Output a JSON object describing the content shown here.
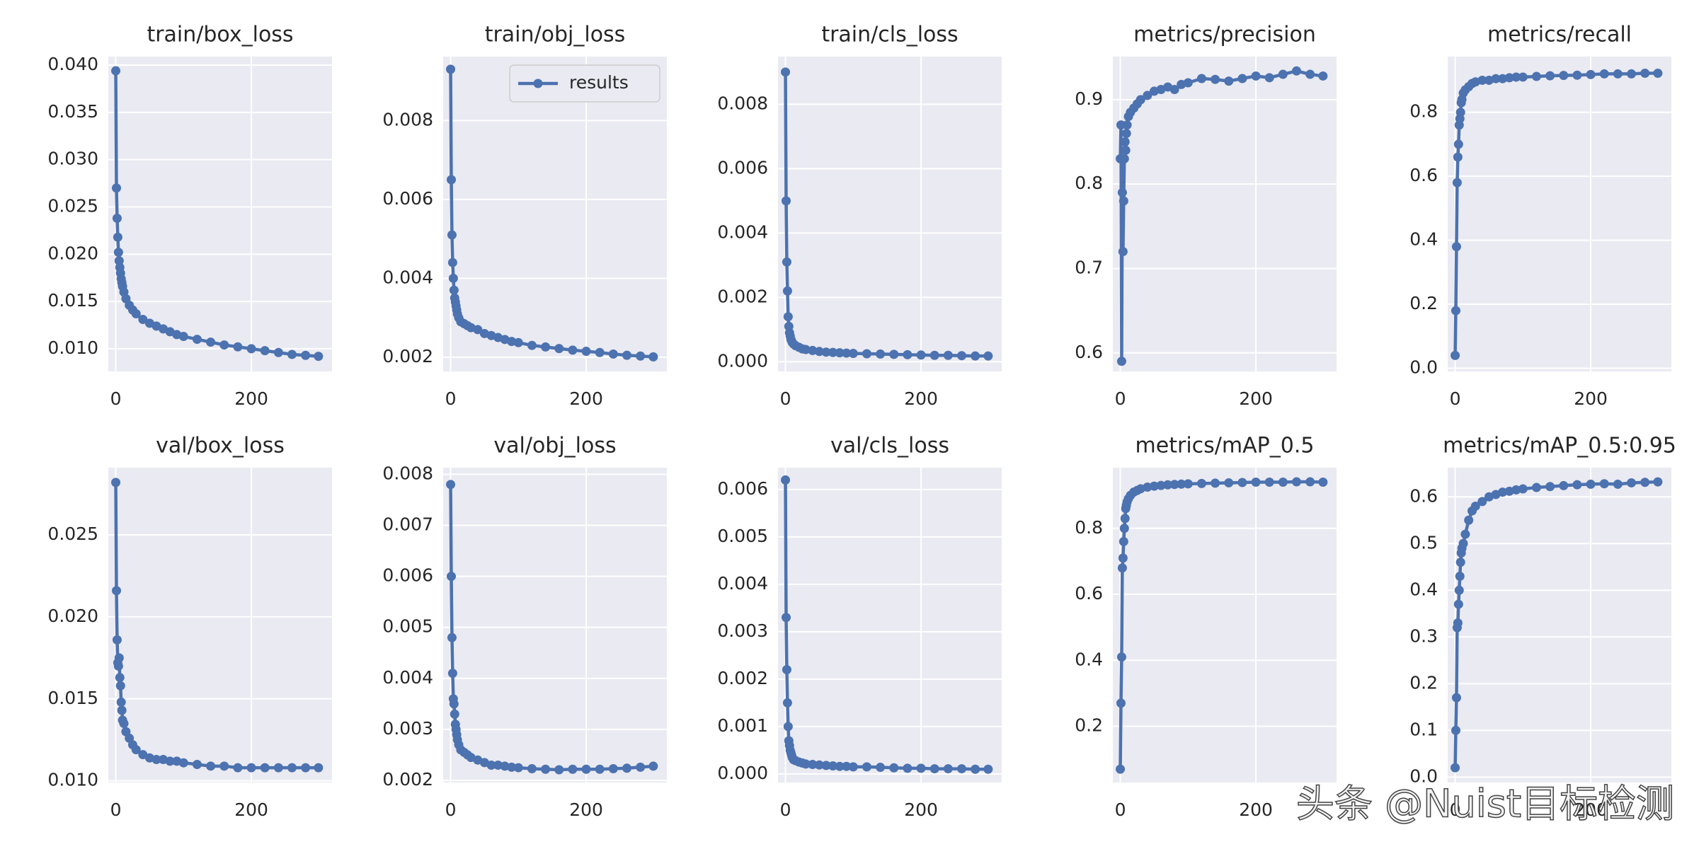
{
  "chart_data": [
    {
      "type": "line",
      "title": "train/box_loss",
      "x": [
        0,
        1,
        2,
        3,
        4,
        5,
        6,
        7,
        8,
        9,
        10,
        12,
        15,
        20,
        25,
        30,
        40,
        50,
        60,
        70,
        80,
        90,
        100,
        120,
        140,
        160,
        180,
        200,
        220,
        240,
        260,
        280,
        299
      ],
      "series": [
        {
          "color": "#4c72b0",
          "values": [
            0.0394,
            0.027,
            0.0238,
            0.0218,
            0.0202,
            0.0193,
            0.0186,
            0.018,
            0.0174,
            0.017,
            0.0166,
            0.016,
            0.0153,
            0.0146,
            0.0141,
            0.0137,
            0.0131,
            0.0127,
            0.0124,
            0.0121,
            0.0118,
            0.0115,
            0.0113,
            0.011,
            0.0107,
            0.0104,
            0.0102,
            0.01,
            0.0098,
            0.0096,
            0.0094,
            0.0093,
            0.0092
          ]
        }
      ],
      "xlim": [
        -11,
        319
      ],
      "ylim": [
        0.0076,
        0.0409
      ],
      "xticks": [
        0,
        200
      ],
      "yticks": [
        {
          "value": 0.01,
          "label": "0.010"
        },
        0.015,
        {
          "value": 0.02,
          "label": "0.020"
        },
        0.025,
        {
          "value": 0.03,
          "label": "0.030"
        },
        0.035,
        {
          "value": 0.04,
          "label": "0.040"
        }
      ],
      "grid": true
    },
    {
      "type": "line",
      "title": "train/obj_loss",
      "x": [
        0,
        1,
        2,
        3,
        4,
        5,
        6,
        7,
        8,
        9,
        10,
        12,
        15,
        20,
        25,
        30,
        40,
        50,
        60,
        70,
        80,
        90,
        100,
        120,
        140,
        160,
        180,
        200,
        220,
        240,
        260,
        280,
        299
      ],
      "series": [
        {
          "name": "results",
          "color": "#4c72b0",
          "values": [
            0.0093,
            0.0065,
            0.0051,
            0.0044,
            0.004,
            0.0037,
            0.0035,
            0.0034,
            0.0033,
            0.0032,
            0.0031,
            0.003,
            0.0029,
            0.00285,
            0.0028,
            0.00275,
            0.0027,
            0.0026,
            0.00255,
            0.0025,
            0.00245,
            0.0024,
            0.00237,
            0.0023,
            0.00226,
            0.00222,
            0.00218,
            0.00215,
            0.00212,
            0.00208,
            0.00205,
            0.00203,
            0.00201
          ]
        }
      ],
      "xlim": [
        -11,
        319
      ],
      "ylim": [
        0.00164,
        0.00962
      ],
      "xticks": [
        0,
        200
      ],
      "yticks": [
        0.002,
        0.004,
        0.006,
        0.008
      ],
      "grid": true,
      "legend": "upper right"
    },
    {
      "type": "line",
      "title": "train/cls_loss",
      "x": [
        0,
        1,
        2,
        3,
        4,
        5,
        6,
        7,
        8,
        9,
        10,
        12,
        15,
        20,
        25,
        30,
        40,
        50,
        60,
        70,
        80,
        90,
        100,
        120,
        140,
        160,
        180,
        200,
        220,
        240,
        260,
        280,
        299
      ],
      "series": [
        {
          "color": "#4c72b0",
          "values": [
            0.009,
            0.005,
            0.0031,
            0.0022,
            0.0014,
            0.0011,
            0.0009,
            0.0008,
            0.0007,
            0.00065,
            0.0006,
            0.00055,
            0.0005,
            0.00045,
            0.0004,
            0.00038,
            0.00035,
            0.00032,
            0.0003,
            0.00029,
            0.00028,
            0.00027,
            0.00026,
            0.00025,
            0.00024,
            0.00023,
            0.00022,
            0.00021,
            0.0002,
            0.0002,
            0.00019,
            0.00018,
            0.00018
          ]
        }
      ],
      "xlim": [
        -11,
        319
      ],
      "ylim": [
        -0.0003,
        0.00948
      ],
      "xticks": [
        0,
        200
      ],
      "yticks": [
        {
          "value": 0,
          "label": "0.000"
        },
        0.002,
        0.004,
        0.006,
        0.008
      ],
      "grid": true
    },
    {
      "type": "line",
      "title": "metrics/precision",
      "x": [
        0,
        1,
        2,
        3,
        4,
        5,
        6,
        7,
        8,
        9,
        10,
        12,
        15,
        20,
        25,
        30,
        40,
        50,
        60,
        70,
        80,
        90,
        100,
        120,
        140,
        160,
        180,
        200,
        220,
        240,
        260,
        280,
        299
      ],
      "series": [
        {
          "color": "#4c72b0",
          "values": [
            0.83,
            0.87,
            0.59,
            0.79,
            0.72,
            0.78,
            0.83,
            0.85,
            0.84,
            0.86,
            0.87,
            0.88,
            0.885,
            0.89,
            0.895,
            0.9,
            0.905,
            0.91,
            0.912,
            0.915,
            0.912,
            0.918,
            0.92,
            0.925,
            0.924,
            0.922,
            0.925,
            0.928,
            0.926,
            0.93,
            0.934,
            0.93,
            0.928
          ]
        }
      ],
      "xlim": [
        -11,
        319
      ],
      "ylim": [
        0.578,
        0.951
      ],
      "xticks": [
        0,
        200
      ],
      "yticks": [
        0.6,
        0.7,
        0.8,
        0.9
      ],
      "grid": true
    },
    {
      "type": "line",
      "title": "metrics/recall",
      "x": [
        0,
        1,
        2,
        3,
        4,
        5,
        6,
        7,
        8,
        9,
        10,
        12,
        15,
        20,
        25,
        30,
        40,
        50,
        60,
        70,
        80,
        90,
        100,
        120,
        140,
        160,
        180,
        200,
        220,
        240,
        260,
        280,
        299
      ],
      "series": [
        {
          "color": "#4c72b0",
          "values": [
            0.04,
            0.18,
            0.38,
            0.58,
            0.66,
            0.7,
            0.76,
            0.78,
            0.8,
            0.83,
            0.84,
            0.86,
            0.87,
            0.88,
            0.89,
            0.895,
            0.9,
            0.9,
            0.905,
            0.905,
            0.908,
            0.91,
            0.91,
            0.912,
            0.914,
            0.915,
            0.916,
            0.918,
            0.92,
            0.92,
            0.92,
            0.922,
            0.922
          ]
        }
      ],
      "xlim": [
        -11,
        319
      ],
      "ylim": [
        -0.01,
        0.974
      ],
      "xticks": [
        0,
        200
      ],
      "yticks": [
        {
          "value": 0,
          "label": "0.0"
        },
        0.2,
        0.4,
        0.6,
        0.8
      ],
      "grid": true
    },
    {
      "type": "line",
      "title": "val/box_loss",
      "x": [
        0,
        1,
        2,
        3,
        4,
        5,
        6,
        7,
        8,
        9,
        10,
        12,
        15,
        20,
        25,
        30,
        40,
        50,
        60,
        70,
        80,
        90,
        100,
        120,
        140,
        160,
        180,
        200,
        220,
        240,
        260,
        280,
        299
      ],
      "series": [
        {
          "color": "#4c72b0",
          "values": [
            0.0282,
            0.0216,
            0.0186,
            0.0172,
            0.017,
            0.0175,
            0.0163,
            0.0158,
            0.0148,
            0.0143,
            0.0137,
            0.0135,
            0.013,
            0.0126,
            0.0122,
            0.0119,
            0.0116,
            0.0114,
            0.0113,
            0.0113,
            0.0112,
            0.0112,
            0.0111,
            0.011,
            0.0109,
            0.0109,
            0.0108,
            0.0108,
            0.0108,
            0.0108,
            0.0108,
            0.0108,
            0.0108
          ]
        }
      ],
      "xlim": [
        -11,
        319
      ],
      "ylim": [
        0.0099,
        0.0291
      ],
      "xticks": [
        0,
        200
      ],
      "yticks": [
        {
          "value": 0.01,
          "label": "0.010"
        },
        0.015,
        {
          "value": 0.02,
          "label": "0.020"
        },
        0.025
      ],
      "grid": true
    },
    {
      "type": "line",
      "title": "val/obj_loss",
      "x": [
        0,
        1,
        2,
        3,
        4,
        5,
        6,
        7,
        8,
        9,
        10,
        12,
        15,
        20,
        25,
        30,
        40,
        50,
        60,
        70,
        80,
        90,
        100,
        120,
        140,
        160,
        180,
        200,
        220,
        240,
        260,
        280,
        299
      ],
      "series": [
        {
          "color": "#4c72b0",
          "values": [
            0.0078,
            0.006,
            0.0048,
            0.0041,
            0.0036,
            0.0035,
            0.0033,
            0.0031,
            0.003,
            0.0029,
            0.0028,
            0.0027,
            0.0026,
            0.00255,
            0.0025,
            0.00245,
            0.0024,
            0.00235,
            0.0023,
            0.0023,
            0.00228,
            0.00226,
            0.00225,
            0.00223,
            0.00222,
            0.00221,
            0.00222,
            0.00222,
            0.00222,
            0.00223,
            0.00224,
            0.00226,
            0.00228
          ]
        }
      ],
      "xlim": [
        -11,
        319
      ],
      "ylim": [
        0.00196,
        0.00813
      ],
      "xticks": [
        0,
        200
      ],
      "yticks": [
        0.002,
        0.003,
        0.004,
        0.005,
        0.006,
        0.007,
        0.008
      ],
      "grid": true
    },
    {
      "type": "line",
      "title": "val/cls_loss",
      "x": [
        0,
        1,
        2,
        3,
        4,
        5,
        6,
        7,
        8,
        9,
        10,
        12,
        15,
        20,
        25,
        30,
        40,
        50,
        60,
        70,
        80,
        90,
        100,
        120,
        140,
        160,
        180,
        200,
        220,
        240,
        260,
        280,
        299
      ],
      "series": [
        {
          "color": "#4c72b0",
          "values": [
            0.0062,
            0.0033,
            0.0022,
            0.0015,
            0.001,
            0.0007,
            0.0006,
            0.0005,
            0.00045,
            0.0004,
            0.00035,
            0.0003,
            0.00028,
            0.00025,
            0.00023,
            0.00021,
            0.0002,
            0.00019,
            0.00018,
            0.00017,
            0.00016,
            0.00016,
            0.00015,
            0.00015,
            0.00014,
            0.00013,
            0.00012,
            0.00012,
            0.00011,
            0.00011,
            0.00011,
            0.0001,
            0.0001
          ]
        }
      ],
      "xlim": [
        -11,
        319
      ],
      "ylim": [
        -0.00018,
        0.00646
      ],
      "xticks": [
        0,
        200
      ],
      "yticks": [
        {
          "value": 0,
          "label": "0.000"
        },
        0.001,
        0.002,
        0.003,
        0.004,
        0.005,
        0.006
      ],
      "grid": true
    },
    {
      "type": "line",
      "title": "metrics/mAP_0.5",
      "x": [
        0,
        1,
        2,
        3,
        4,
        5,
        6,
        7,
        8,
        9,
        10,
        12,
        15,
        20,
        25,
        30,
        40,
        50,
        60,
        70,
        80,
        90,
        100,
        120,
        140,
        160,
        180,
        200,
        220,
        240,
        260,
        280,
        299
      ],
      "series": [
        {
          "color": "#4c72b0",
          "values": [
            0.07,
            0.27,
            0.41,
            0.68,
            0.71,
            0.76,
            0.8,
            0.83,
            0.86,
            0.87,
            0.88,
            0.89,
            0.9,
            0.91,
            0.915,
            0.92,
            0.925,
            0.928,
            0.93,
            0.932,
            0.933,
            0.934,
            0.935,
            0.936,
            0.937,
            0.938,
            0.939,
            0.94,
            0.94,
            0.94,
            0.941,
            0.941,
            0.94
          ]
        }
      ],
      "xlim": [
        -11,
        319
      ],
      "ylim": [
        0.0295,
        0.984
      ],
      "xticks": [
        0,
        200
      ],
      "yticks": [
        0.2,
        0.4,
        0.6,
        0.8
      ],
      "grid": true
    },
    {
      "type": "line",
      "title": "metrics/mAP_0.5:0.95",
      "x": [
        0,
        1,
        2,
        3,
        4,
        5,
        6,
        7,
        8,
        9,
        10,
        12,
        15,
        20,
        25,
        30,
        40,
        50,
        60,
        70,
        80,
        90,
        100,
        120,
        140,
        160,
        180,
        200,
        220,
        240,
        260,
        280,
        299
      ],
      "series": [
        {
          "color": "#4c72b0",
          "values": [
            0.02,
            0.1,
            0.17,
            0.32,
            0.33,
            0.37,
            0.4,
            0.43,
            0.46,
            0.48,
            0.49,
            0.5,
            0.52,
            0.55,
            0.57,
            0.58,
            0.59,
            0.6,
            0.605,
            0.61,
            0.612,
            0.615,
            0.617,
            0.62,
            0.622,
            0.624,
            0.626,
            0.627,
            0.628,
            0.627,
            0.63,
            0.631,
            0.632
          ]
        }
      ],
      "xlim": [
        -11,
        319
      ],
      "ylim": [
        -0.0116,
        0.6625
      ],
      "xticks": [
        0,
        200
      ],
      "yticks": [
        {
          "value": 0,
          "label": "0.0"
        },
        0.1,
        0.2,
        0.3,
        0.4,
        0.5,
        0.6
      ],
      "grid": true
    }
  ],
  "watermark": "头条 @Nuist目标检测"
}
